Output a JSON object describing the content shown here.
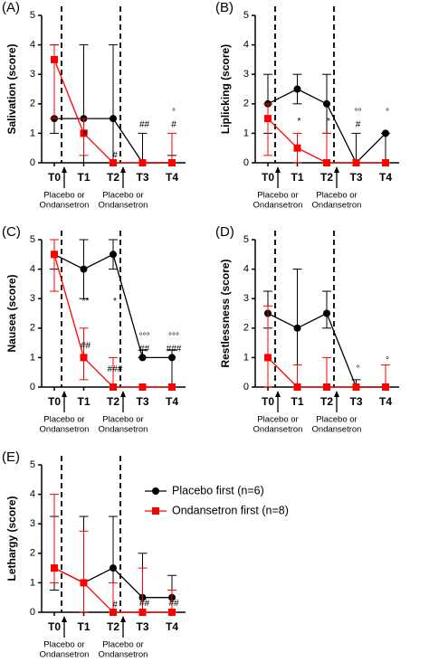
{
  "chart_data": [
    {
      "type": "line",
      "panel_label": "(A)",
      "y_label": "Salivation (score)",
      "categories": [
        "T0",
        "T1",
        "T2",
        "T3",
        "T4"
      ],
      "ylim": [
        0,
        5
      ],
      "yticks": [
        0,
        1,
        2,
        3,
        4,
        5
      ],
      "series": [
        {
          "color": "#000000",
          "marker": "circle",
          "values": [
            1.5,
            1.5,
            1.5,
            0,
            0
          ],
          "lower": [
            1,
            0,
            0,
            0,
            0
          ],
          "upper": [
            4,
            4,
            4,
            1,
            0.25
          ]
        },
        {
          "color": "#ff0000",
          "marker": "square",
          "values": [
            3.5,
            1,
            0,
            0,
            0
          ],
          "lower": [
            1.5,
            0.25,
            0,
            0,
            0
          ],
          "upper": [
            4,
            1.5,
            0,
            0,
            1
          ]
        }
      ],
      "annotations": [
        {
          "text": "#",
          "x": "T1",
          "y": 1
        },
        {
          "text": "#",
          "x": "T2",
          "y": 0.25
        },
        {
          "text": "##",
          "x": "T3",
          "y": 1.3
        },
        {
          "text": "°",
          "x": "T4",
          "y": 1.7
        },
        {
          "text": "#",
          "x": "T4",
          "y": 1.3
        }
      ],
      "arrow_labels": [
        {
          "x": "T0",
          "lines": [
            "Placebo or",
            "Ondansetron"
          ]
        },
        {
          "x": "T2",
          "lines": [
            "Placebo or",
            "Ondansetron"
          ]
        }
      ]
    },
    {
      "type": "line",
      "panel_label": "(B)",
      "y_label": "Liplicking (score)",
      "categories": [
        "T0",
        "T1",
        "T2",
        "T3",
        "T4"
      ],
      "ylim": [
        0,
        5
      ],
      "yticks": [
        0,
        1,
        2,
        3,
        4,
        5
      ],
      "series": [
        {
          "color": "#000000",
          "marker": "circle",
          "values": [
            2,
            2.5,
            2,
            0,
            1
          ],
          "lower": [
            1,
            2,
            1,
            0,
            0
          ],
          "upper": [
            3,
            3,
            3,
            1,
            1
          ]
        },
        {
          "color": "#ff0000",
          "marker": "square",
          "values": [
            1.5,
            0.5,
            0,
            0,
            0
          ],
          "lower": [
            0.25,
            0,
            0,
            0,
            0
          ],
          "upper": [
            2,
            1,
            1,
            0,
            0
          ]
        }
      ],
      "annotations": [
        {
          "text": "*",
          "x": "T1",
          "y": 1.4
        },
        {
          "text": "*",
          "x": "T2",
          "y": 1.4
        },
        {
          "text": "°°",
          "x": "T3",
          "y": 1.7
        },
        {
          "text": "#",
          "x": "T3",
          "y": 1.3
        },
        {
          "text": "°",
          "x": "T4",
          "y": 1.7
        }
      ],
      "arrow_labels": [
        {
          "x": "T0",
          "lines": [
            "Placebo or",
            "Ondansetron"
          ]
        },
        {
          "x": "T2",
          "lines": [
            "Placebo or",
            "Ondansetron"
          ]
        }
      ]
    },
    {
      "type": "line",
      "panel_label": "(C)",
      "y_label": "Nausea (score)",
      "categories": [
        "T0",
        "T1",
        "T2",
        "T3",
        "T4"
      ],
      "ylim": [
        0,
        5
      ],
      "yticks": [
        0,
        1,
        2,
        3,
        4,
        5
      ],
      "series": [
        {
          "color": "#000000",
          "marker": "circle",
          "values": [
            4.5,
            4,
            4.5,
            1,
            1
          ],
          "lower": [
            4,
            3,
            4,
            1,
            0
          ],
          "upper": [
            5,
            5,
            5,
            1.25,
            1.25
          ]
        },
        {
          "color": "#ff0000",
          "marker": "square",
          "values": [
            4.5,
            1,
            0,
            0,
            0
          ],
          "lower": [
            3.25,
            0.25,
            0,
            0,
            0
          ],
          "upper": [
            5,
            2,
            1,
            0,
            0
          ]
        }
      ],
      "annotations": [
        {
          "text": "**",
          "x": "T1",
          "y": 2.9
        },
        {
          "text": "##",
          "x": "T1",
          "y": 1.4
        },
        {
          "text": "*",
          "x": "T2",
          "y": 2.9
        },
        {
          "text": "###",
          "x": "T2",
          "y": 0.6
        },
        {
          "text": "°°°",
          "x": "T3",
          "y": 1.7
        },
        {
          "text": "##",
          "x": "T3",
          "y": 1.3
        },
        {
          "text": "°°°",
          "x": "T4",
          "y": 1.7
        },
        {
          "text": "###",
          "x": "T4",
          "y": 1.3
        }
      ],
      "arrow_labels": [
        {
          "x": "T0",
          "lines": [
            "Placebo or",
            "Ondansetron"
          ]
        },
        {
          "x": "T2",
          "lines": [
            "Placebo or",
            "Ondansetron"
          ]
        }
      ]
    },
    {
      "type": "line",
      "panel_label": "(D)",
      "y_label": "Restlessness (score)",
      "categories": [
        "T0",
        "T1",
        "T2",
        "T3",
        "T4"
      ],
      "ylim": [
        0,
        5
      ],
      "yticks": [
        0,
        1,
        2,
        3,
        4,
        5
      ],
      "series": [
        {
          "color": "#000000",
          "marker": "circle",
          "values": [
            2.5,
            2,
            2.5,
            0,
            0
          ],
          "lower": [
            2,
            0,
            2,
            0,
            0
          ],
          "upper": [
            3.25,
            4,
            3.25,
            0.25,
            0
          ]
        },
        {
          "color": "#ff0000",
          "marker": "square",
          "values": [
            1,
            0,
            0,
            0,
            0
          ],
          "lower": [
            0,
            0,
            0,
            0,
            0
          ],
          "upper": [
            2.75,
            0.75,
            1,
            0,
            0.75
          ]
        }
      ],
      "annotations": [
        {
          "text": "°",
          "x": "T3",
          "y": 0.6
        },
        {
          "text": "°",
          "x": "T4",
          "y": 0.9
        }
      ],
      "arrow_labels": [
        {
          "x": "T0",
          "lines": [
            "Placebo or",
            "Ondansetron"
          ]
        },
        {
          "x": "T2",
          "lines": [
            "Placebo or",
            "Ondansetron"
          ]
        }
      ]
    },
    {
      "type": "line",
      "panel_label": "(E)",
      "y_label": "Lethargy (score)",
      "categories": [
        "T0",
        "T1",
        "T2",
        "T3",
        "T4"
      ],
      "ylim": [
        0,
        5
      ],
      "yticks": [
        0,
        1,
        2,
        3,
        4,
        5
      ],
      "series": [
        {
          "name": "Placebo first (n=6)",
          "color": "#000000",
          "marker": "circle",
          "values": [
            1.5,
            1,
            1.5,
            0.5,
            0.5
          ],
          "lower": [
            0.75,
            0,
            0,
            0,
            0
          ],
          "upper": [
            3.25,
            3.25,
            3.25,
            2,
            1.25
          ]
        },
        {
          "name": "Ondansetron first (n=8)",
          "color": "#ff0000",
          "marker": "square",
          "values": [
            1.5,
            1,
            0,
            0,
            0
          ],
          "lower": [
            1,
            0,
            0,
            0,
            0
          ],
          "upper": [
            4,
            2.75,
            1,
            1.5,
            0.75
          ]
        }
      ],
      "annotations": [
        {
          "text": "#",
          "x": "T2",
          "y": 0.25
        },
        {
          "text": "##",
          "x": "T3",
          "y": 0.3
        },
        {
          "text": "##",
          "x": "T4",
          "y": 0.3
        }
      ],
      "arrow_labels": [
        {
          "x": "T0",
          "lines": [
            "Placebo or",
            "Ondansetron"
          ]
        },
        {
          "x": "T2",
          "lines": [
            "Placebo or",
            "Ondansetron"
          ]
        }
      ]
    }
  ]
}
